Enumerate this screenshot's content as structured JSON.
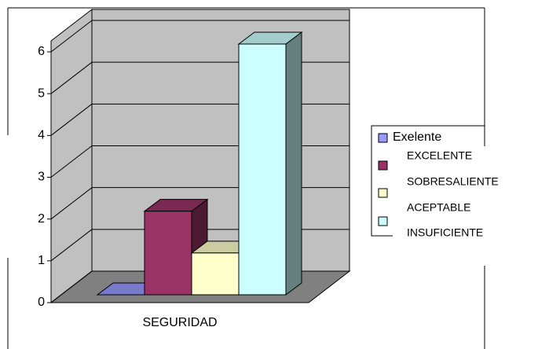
{
  "chart_data": {
    "type": "bar3d",
    "categories": [
      "SEGURIDAD"
    ],
    "series": [
      {
        "name": "EXCELENTE",
        "color": "#9999ff",
        "values": [
          0
        ]
      },
      {
        "name": "SOBRESALIENTE",
        "color": "#993366",
        "values": [
          2
        ]
      },
      {
        "name": "ACEPTABLE",
        "color": "#ffffcc",
        "values": [
          1
        ]
      },
      {
        "name": "INSUFICIENTE",
        "color": "#ccffff",
        "values": [
          6
        ]
      }
    ],
    "legend_note": "Exelente",
    "ylim": [
      0,
      6
    ],
    "yticks": [
      0,
      1,
      2,
      3,
      4,
      5,
      6
    ],
    "grid": true,
    "legend": "right"
  }
}
